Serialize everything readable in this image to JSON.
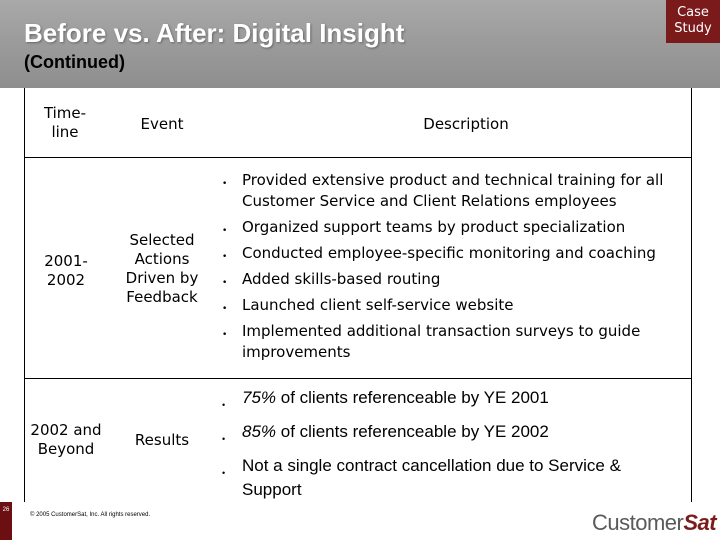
{
  "header": {
    "title": "Before vs. After: Digital Insight",
    "subtitle": "(Continued)",
    "badge_line1": "Case",
    "badge_line2": "Study"
  },
  "table": {
    "columns": [
      "Time-\nline",
      "Event",
      "Description"
    ],
    "rows": [
      {
        "timeline": "2001-\n2002",
        "event": "Selected\nActions\nDriven by\nFeedback",
        "bullets": [
          "Provided extensive product and technical training for all Customer Service and Client Relations employees",
          "Organized support teams by product specialization",
          "Conducted employee-specific monitoring and coaching",
          "Added skills-based routing",
          "Launched client self-service website",
          "Implemented additional transaction surveys to guide improvements"
        ]
      },
      {
        "timeline": "2002 and\nBeyond",
        "event": "Results",
        "bullets": [
          {
            "emph": "75%",
            "rest": " of clients referenceable by YE 2001"
          },
          {
            "emph": "85%",
            "rest": " of clients referenceable by YE 2002"
          },
          {
            "emph": "",
            "rest": "Not a single contract cancellation due to Service & Support"
          }
        ]
      }
    ]
  },
  "footer": {
    "page_number": "26",
    "copyright": "© 2005 CustomerSat, Inc.  All rights reserved.",
    "logo_part1": "Customer",
    "logo_part2": "Sat"
  },
  "bullet_char": "•",
  "colors": {
    "badge": "#7a1a1a",
    "header_bg": "#9c9c9c"
  }
}
